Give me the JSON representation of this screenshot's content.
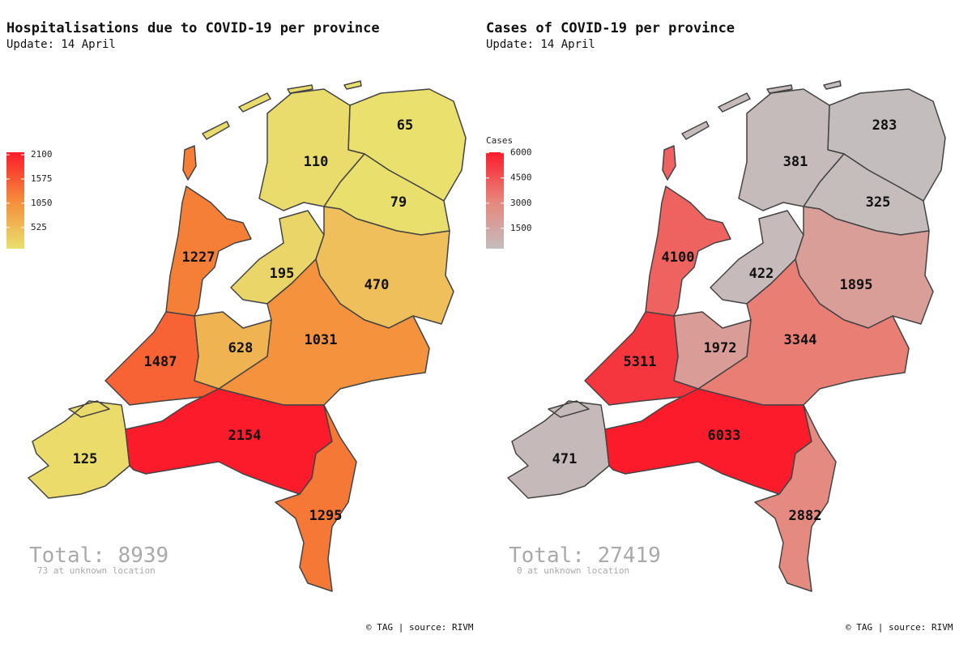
{
  "panels": [
    {
      "title": "Hospitalisations due to COVID-19 per province",
      "subtitle": "Update: 14 April",
      "legend": {
        "lim": [
          65,
          2154
        ],
        "ticks": [
          2100,
          1575,
          1050,
          525
        ],
        "colors": [
          "#e9e06e",
          "#f58c3a",
          "#fb1b2b"
        ]
      },
      "values": [
        65,
        110,
        79,
        195,
        470,
        1031,
        628,
        1227,
        1487,
        125,
        2154,
        1295
      ],
      "total": "Total: 8939",
      "unknown": "73 at unknown location",
      "footer": "© TAG | source: RIVM"
    },
    {
      "title": "Cases of COVID-19 per province",
      "subtitle": "Update: 14 April",
      "legend": {
        "title": "Cases",
        "lim": [
          283,
          6033
        ],
        "ticks": [
          6000,
          4500,
          3000,
          1500
        ],
        "colors": [
          "#c4bdbd",
          "#e8857a",
          "#fb1b2b"
        ]
      },
      "values": [
        283,
        381,
        325,
        422,
        1895,
        3344,
        1972,
        4100,
        5311,
        471,
        6033,
        2882
      ],
      "total": "Total: 27419",
      "unknown": "0 at unknown location",
      "footer": "© TAG | source: RIVM"
    }
  ]
}
